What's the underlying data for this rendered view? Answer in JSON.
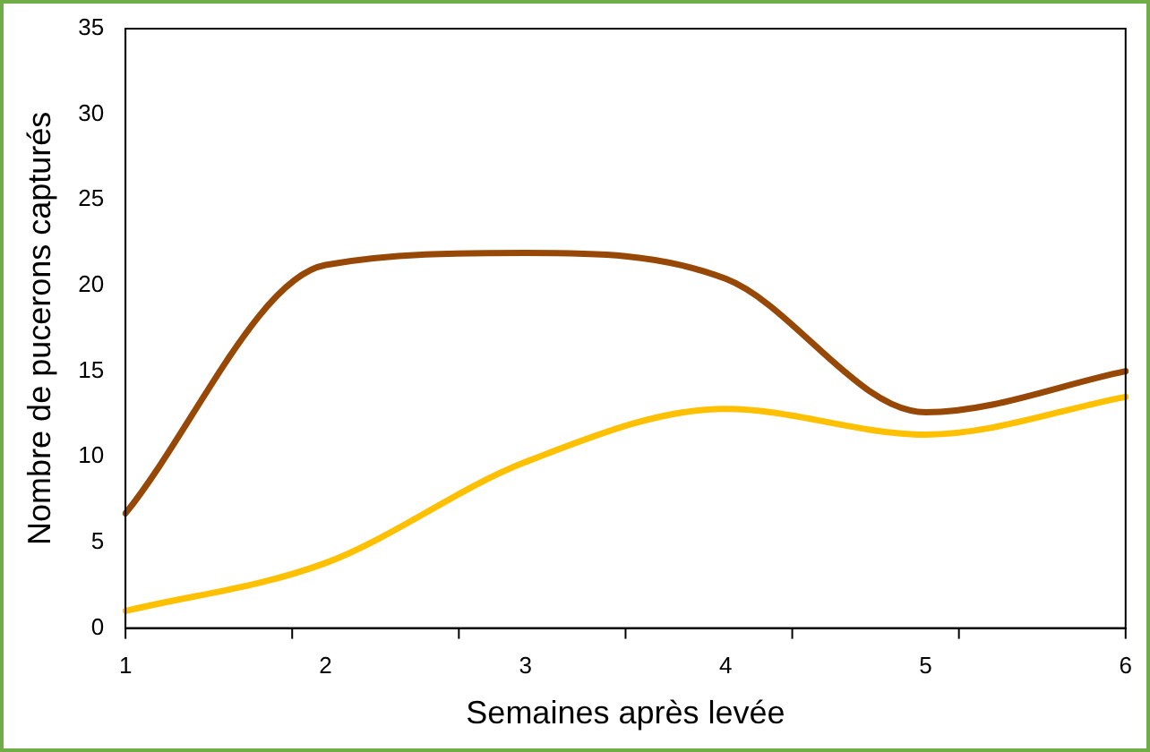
{
  "chart_data": {
    "type": "line",
    "xlabel": "Semaines après levée",
    "ylabel": "Nombre de pucerons capturés",
    "categories": [
      "1",
      "2",
      "3",
      "4",
      "5",
      "6"
    ],
    "series": [
      {
        "color": "#974806",
        "values": [
          6.7,
          21.2,
          21.9,
          20.4,
          12.6,
          15
        ]
      },
      {
        "color": "#ffc000",
        "values": [
          1,
          3.8,
          9.7,
          12.8,
          11.3,
          13.5
        ]
      }
    ],
    "ylim": [
      0,
      35
    ],
    "yticks": [
      0,
      5,
      10,
      15,
      20,
      25,
      30,
      35
    ],
    "grid": false,
    "legend": false,
    "marker": "none",
    "line_style": "solid"
  }
}
